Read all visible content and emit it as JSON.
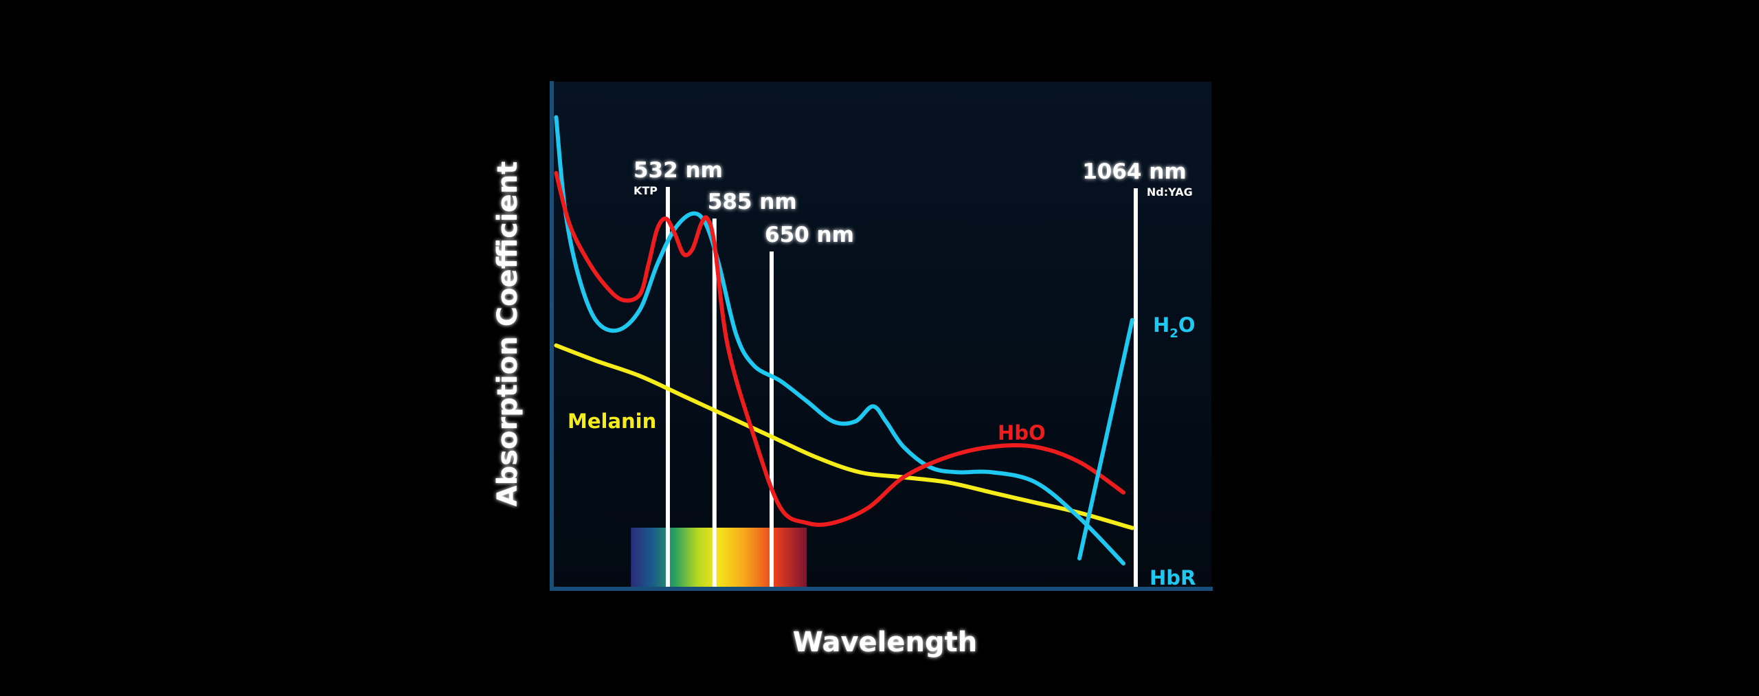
{
  "chart_data": {
    "type": "line",
    "title": "",
    "xlabel": "Wavelength",
    "ylabel": "Absorption Coefficient",
    "xlim": [
      400,
      1150
    ],
    "ylim": [
      0,
      100
    ],
    "grid": false,
    "wavelength_markers": [
      {
        "value": 532,
        "label": "532 nm",
        "sublabel": "KTP"
      },
      {
        "value": 585,
        "label": "585 nm",
        "sublabel": ""
      },
      {
        "value": 650,
        "label": "650 nm",
        "sublabel": ""
      },
      {
        "value": 1064,
        "label": "1064 nm",
        "sublabel": "Nd:YAG"
      }
    ],
    "visible_spectrum_band": {
      "start": 490,
      "end": 690
    },
    "series": [
      {
        "name": "HbR",
        "color": "#1ec8f0",
        "x": [
          405,
          415,
          430,
          450,
          475,
          500,
          520,
          540,
          560,
          575,
          590,
          610,
          630,
          660,
          690,
          720,
          745,
          765,
          780,
          800,
          830,
          860,
          900,
          950,
          1000,
          1050
        ],
        "y": [
          93,
          75,
          62,
          53,
          51,
          55,
          64,
          71,
          74,
          72,
          64,
          50,
          44,
          41,
          37,
          33,
          33,
          36,
          33,
          28,
          24,
          23,
          23,
          21,
          14,
          5
        ]
      },
      {
        "name": "HbO",
        "color": "#ee1c1c",
        "x": [
          405,
          420,
          440,
          460,
          480,
          500,
          510,
          520,
          530,
          540,
          550,
          560,
          570,
          577,
          585,
          600,
          630,
          660,
          690,
          720,
          760,
          800,
          850,
          900,
          950,
          1000,
          1050
        ],
        "y": [
          82,
          72,
          65,
          60,
          57,
          58,
          64,
          71,
          73,
          70,
          66,
          67,
          72,
          73,
          68,
          48,
          30,
          16,
          13,
          13,
          16,
          22,
          26,
          28,
          28,
          25,
          19
        ]
      },
      {
        "name": "Melanin",
        "color": "#f5ec1a",
        "x": [
          405,
          450,
          500,
          550,
          600,
          650,
          700,
          750,
          800,
          850,
          900,
          950,
          1000,
          1060
        ],
        "y": [
          48,
          45,
          42,
          38,
          34,
          30,
          26,
          23,
          22,
          21,
          19,
          17,
          15,
          12
        ]
      },
      {
        "name": "H2O",
        "color": "#1ec8f0",
        "x": [
          1000,
          1060
        ],
        "y": [
          6,
          53
        ]
      }
    ],
    "labels": {
      "melanin": "Melanin",
      "hbo": "HbO",
      "hbr": "HbR",
      "h2o_main": "H",
      "h2o_sub": "2",
      "h2o_end": "O"
    }
  },
  "colors": {
    "axis": "#174e7a",
    "plot_bg_top": "#06111e",
    "plot_bg_bottom": "#020a14",
    "marker": "#ffffff"
  }
}
